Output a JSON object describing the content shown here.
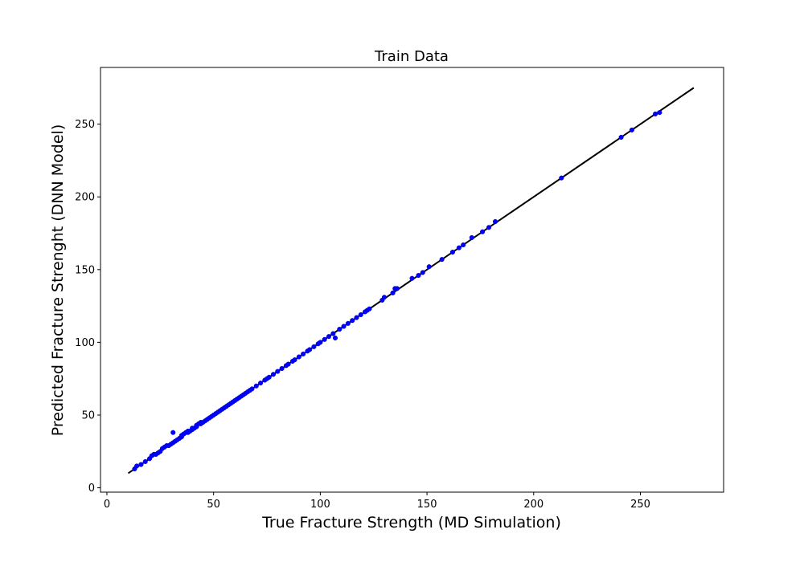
{
  "chart_data": {
    "type": "scatter",
    "title": "Train Data",
    "xlabel": "True Fracture Strength (MD Simulation)",
    "ylabel": "Predicted Fracture Strenght (DNN Model)",
    "xlim": [
      -3,
      289
    ],
    "ylim": [
      -3,
      289
    ],
    "xticks": [
      0,
      50,
      100,
      150,
      200,
      250
    ],
    "yticks": [
      0,
      50,
      100,
      150,
      200,
      250
    ],
    "grid": false,
    "colors": {
      "points": "#0000ff",
      "line": "#000000"
    },
    "reference_line": {
      "x": [
        10,
        275
      ],
      "y": [
        10,
        275
      ]
    },
    "series": [
      {
        "marker": "dot",
        "x": [
          13,
          14,
          16,
          18,
          20,
          21,
          22,
          23,
          24,
          25,
          26,
          27,
          28,
          29,
          30,
          31,
          31,
          32,
          33,
          34,
          35,
          35,
          36,
          37,
          38,
          38,
          39,
          40,
          40,
          41,
          42,
          42,
          43,
          44,
          44,
          45,
          46,
          47,
          48,
          49,
          50,
          51,
          52,
          53,
          54,
          55,
          56,
          57,
          58,
          59,
          60,
          61,
          62,
          63,
          64,
          65,
          66,
          67,
          68,
          70,
          72,
          74,
          75,
          76,
          78,
          80,
          82,
          84,
          85,
          87,
          88,
          90,
          92,
          94,
          95,
          97,
          99,
          100,
          102,
          104,
          106,
          107,
          109,
          111,
          113,
          115,
          117,
          119,
          121,
          122,
          123,
          129,
          130,
          134,
          135,
          136,
          143,
          146,
          148,
          151,
          157,
          162,
          165,
          167,
          171,
          176,
          179,
          182,
          213,
          241,
          246,
          257,
          259
        ],
        "y": [
          13,
          15,
          16,
          18,
          20,
          22,
          23,
          23,
          24,
          25,
          27,
          28,
          29,
          29,
          30,
          31,
          38,
          32,
          33,
          34,
          35,
          36,
          37,
          38,
          38,
          39,
          39,
          40,
          41,
          41,
          42,
          43,
          44,
          44,
          45,
          45,
          46,
          47,
          48,
          49,
          50,
          51,
          52,
          53,
          54,
          55,
          56,
          57,
          58,
          59,
          60,
          61,
          62,
          63,
          64,
          65,
          66,
          67,
          68,
          70,
          72,
          74,
          75,
          76,
          78,
          80,
          82,
          84,
          85,
          87,
          88,
          90,
          92,
          94,
          95,
          97,
          99,
          100,
          102,
          104,
          106,
          103,
          109,
          111,
          113,
          115,
          117,
          119,
          121,
          122,
          123,
          129,
          131,
          134,
          137,
          137,
          144,
          146,
          148,
          152,
          157,
          162,
          165,
          167,
          172,
          176,
          179,
          183,
          213,
          241,
          246,
          257,
          258
        ]
      }
    ]
  }
}
